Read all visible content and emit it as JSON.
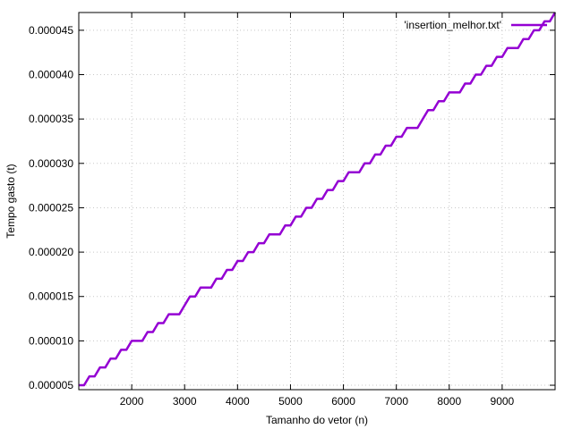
{
  "chart_data": {
    "type": "line",
    "title": "",
    "xlabel": "Tamanho do vetor (n)",
    "ylabel": "Tempo gasto (t)",
    "xlim": [
      1000,
      10000
    ],
    "ylim": [
      4.5e-06,
      4.7e-05
    ],
    "x_ticks": [
      2000,
      3000,
      4000,
      5000,
      6000,
      7000,
      8000,
      9000
    ],
    "x_tick_labels": [
      "2000",
      "3000",
      "4000",
      "5000",
      "6000",
      "7000",
      "8000",
      "9000"
    ],
    "y_ticks": [
      5e-06,
      1e-05,
      1.5e-05,
      2e-05,
      2.5e-05,
      3e-05,
      3.5e-05,
      4e-05,
      4.5e-05
    ],
    "y_tick_labels": [
      "0.000005",
      "0.000010",
      "0.000015",
      "0.000020",
      "0.000025",
      "0.000030",
      "0.000035",
      "0.000040",
      "0.000045"
    ],
    "grid": true,
    "legend_position": "top-right",
    "series": [
      {
        "name": "'insertion_melhor.txt'",
        "color": "#9400d3",
        "x": [
          1000,
          1100,
          1200,
          1300,
          1400,
          1500,
          1600,
          1700,
          1800,
          1900,
          2000,
          2100,
          2200,
          2300,
          2400,
          2500,
          2600,
          2700,
          2800,
          2900,
          3000,
          3100,
          3200,
          3300,
          3400,
          3500,
          3600,
          3700,
          3800,
          3900,
          4000,
          4100,
          4200,
          4300,
          4400,
          4500,
          4600,
          4700,
          4800,
          4900,
          5000,
          5100,
          5200,
          5300,
          5400,
          5500,
          5600,
          5700,
          5800,
          5900,
          6000,
          6100,
          6200,
          6300,
          6400,
          6500,
          6600,
          6700,
          6800,
          6900,
          7000,
          7100,
          7200,
          7300,
          7400,
          7500,
          7600,
          7700,
          7800,
          7900,
          8000,
          8100,
          8200,
          8300,
          8400,
          8500,
          8600,
          8700,
          8800,
          8900,
          9000,
          9100,
          9200,
          9300,
          9400,
          9500,
          9600,
          9700,
          9800,
          9900,
          10000
        ],
        "y": [
          5e-06,
          5e-06,
          6e-06,
          6e-06,
          7e-06,
          7e-06,
          8e-06,
          8e-06,
          9e-06,
          9e-06,
          1e-05,
          1e-05,
          1e-05,
          1.1e-05,
          1.1e-05,
          1.2e-05,
          1.2e-05,
          1.3e-05,
          1.3e-05,
          1.3e-05,
          1.4e-05,
          1.5e-05,
          1.5e-05,
          1.6e-05,
          1.6e-05,
          1.6e-05,
          1.7e-05,
          1.7e-05,
          1.8e-05,
          1.8e-05,
          1.9e-05,
          1.9e-05,
          2e-05,
          2e-05,
          2.1e-05,
          2.1e-05,
          2.2e-05,
          2.2e-05,
          2.2e-05,
          2.3e-05,
          2.3e-05,
          2.4e-05,
          2.4e-05,
          2.5e-05,
          2.5e-05,
          2.6e-05,
          2.6e-05,
          2.7e-05,
          2.7e-05,
          2.8e-05,
          2.8e-05,
          2.9e-05,
          2.9e-05,
          2.9e-05,
          3e-05,
          3e-05,
          3.1e-05,
          3.1e-05,
          3.2e-05,
          3.2e-05,
          3.3e-05,
          3.3e-05,
          3.4e-05,
          3.4e-05,
          3.4e-05,
          3.5e-05,
          3.6e-05,
          3.6e-05,
          3.7e-05,
          3.7e-05,
          3.8e-05,
          3.8e-05,
          3.8e-05,
          3.9e-05,
          3.9e-05,
          4e-05,
          4e-05,
          4.1e-05,
          4.1e-05,
          4.2e-05,
          4.2e-05,
          4.3e-05,
          4.3e-05,
          4.3e-05,
          4.4e-05,
          4.4e-05,
          4.5e-05,
          4.5e-05,
          4.6e-05,
          4.6e-05,
          4.7e-05
        ]
      }
    ]
  }
}
